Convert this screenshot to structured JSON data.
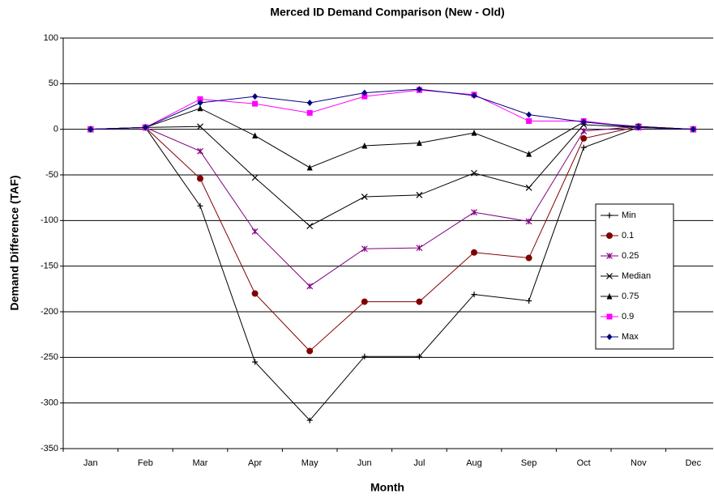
{
  "chart_data": {
    "type": "line",
    "title": "Merced ID Demand Comparison  (New - Old)",
    "x_label": "Month",
    "y_label": "Demand Difference (TAF)",
    "categories": [
      "Jan",
      "Feb",
      "Mar",
      "Apr",
      "May",
      "Jun",
      "Jul",
      "Aug",
      "Sep",
      "Oct",
      "Nov",
      "Dec"
    ],
    "series": [
      {
        "name": "Min",
        "color": "#000000",
        "marker": "plus",
        "values": [
          0,
          2,
          -84,
          -255,
          -319,
          -249,
          -249,
          -181,
          -188,
          -20,
          2,
          0
        ]
      },
      {
        "name": "0.1",
        "color": "#800000",
        "marker": "circle",
        "values": [
          0,
          2,
          -54,
          -180,
          -243,
          -189,
          -189,
          -135,
          -141,
          -10,
          3,
          0
        ]
      },
      {
        "name": "0.25",
        "color": "#800080",
        "marker": "asterisk",
        "values": [
          0,
          2,
          -24,
          -112,
          -172,
          -131,
          -130,
          -91,
          -101,
          -2,
          3,
          0
        ]
      },
      {
        "name": "Median",
        "color": "#000000",
        "marker": "x",
        "values": [
          0,
          2,
          3,
          -53,
          -106,
          -74,
          -72,
          -48,
          -64,
          5,
          2,
          0
        ]
      },
      {
        "name": "0.75",
        "color": "#000000",
        "marker": "triangle",
        "values": [
          0,
          2,
          23,
          -7,
          -42,
          -18,
          -15,
          -4,
          -27,
          8,
          3,
          0
        ]
      },
      {
        "name": "0.9",
        "color": "#ff00ff",
        "marker": "square",
        "values": [
          0,
          2,
          33,
          28,
          18,
          36,
          43,
          38,
          9,
          9,
          2,
          0
        ]
      },
      {
        "name": "Max",
        "color": "#000080",
        "marker": "diamond",
        "values": [
          0,
          2,
          29,
          36,
          29,
          40,
          44,
          37,
          16,
          8,
          2,
          0
        ]
      }
    ],
    "ylim": [
      -350,
      100
    ],
    "yticks": [
      -350,
      -300,
      -250,
      -200,
      -150,
      -100,
      -50,
      0,
      50,
      100
    ],
    "grid": true,
    "legend": "right"
  }
}
